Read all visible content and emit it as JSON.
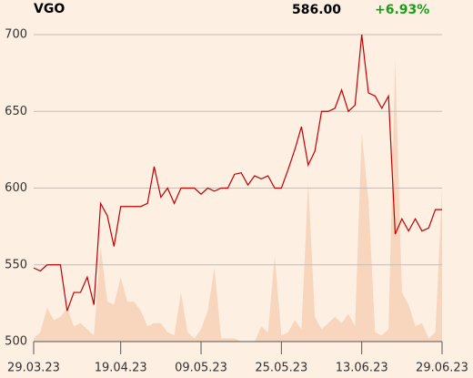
{
  "header": {
    "ticker": "VGO",
    "price": "586.00",
    "change": "+6.93%"
  },
  "chart_data": {
    "type": "line",
    "categories": [
      "29.03.23",
      null,
      null,
      null,
      null,
      null,
      null,
      null,
      null,
      null,
      null,
      null,
      null,
      "19.04.23",
      null,
      null,
      null,
      null,
      null,
      null,
      null,
      null,
      null,
      null,
      null,
      "09.05.23",
      null,
      null,
      null,
      null,
      null,
      null,
      null,
      null,
      null,
      null,
      null,
      "25.05.23",
      null,
      null,
      null,
      null,
      null,
      null,
      null,
      null,
      null,
      null,
      null,
      "13.06.23",
      null,
      null,
      null,
      null,
      null,
      null,
      null,
      null,
      null,
      null,
      null,
      "29.06.23"
    ],
    "series": [
      {
        "color": "#c00000",
        "values": [
          548,
          546,
          550,
          550,
          550,
          520,
          532,
          532,
          542,
          524,
          590,
          582,
          562,
          588,
          588,
          588,
          588,
          590,
          614,
          594,
          600,
          590,
          600,
          600,
          600,
          596,
          600,
          598,
          600,
          600,
          609,
          610,
          602,
          608,
          606,
          608,
          600,
          600,
          612,
          625,
          640,
          615,
          624,
          650,
          650,
          652,
          664,
          650,
          654,
          700,
          662,
          660,
          652,
          660,
          570,
          580,
          572,
          580,
          572,
          574,
          586,
          586
        ]
      }
    ],
    "volume": {
      "color": "#f8d6bd",
      "values": [
        1,
        3,
        11,
        7,
        8,
        11,
        5,
        6,
        4,
        2,
        31,
        13,
        12,
        21,
        13,
        13,
        10,
        5,
        6,
        6,
        3,
        2,
        16,
        3,
        1,
        4,
        10,
        24,
        1,
        1,
        1,
        0,
        0,
        0,
        5,
        3,
        28,
        2,
        3,
        7,
        4,
        52,
        8,
        4,
        6,
        8,
        6,
        9,
        5,
        68,
        46,
        3,
        2,
        4,
        92,
        16,
        12,
        5,
        6,
        1,
        3,
        50
      ]
    },
    "ylim": [
      500,
      700
    ],
    "yticks": [
      500,
      550,
      600,
      650,
      700
    ],
    "y2lim": [
      0,
      100
    ],
    "grid": true
  }
}
